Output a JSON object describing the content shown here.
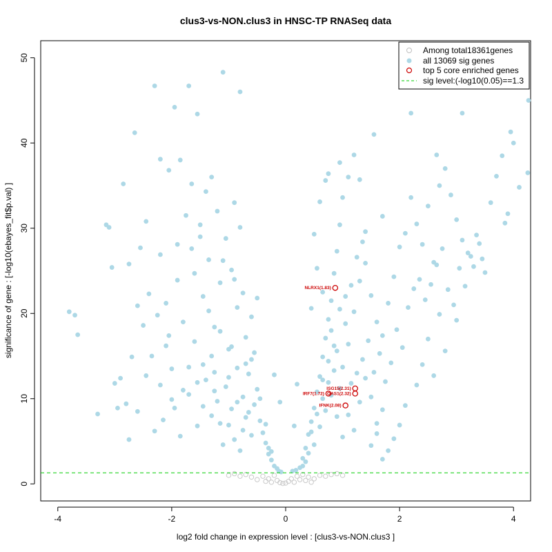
{
  "chart_data": {
    "type": "scatter",
    "title": "clus3-vs-NON.clus3 in HNSC-TP RNASeq data",
    "xlabel": "log2 fold change in expression level : [clus3-vs-NON.clus3 ]",
    "ylabel": "significance of gene : [-log10(ebayes_fit$p.val) ]",
    "xlim": [
      -4.3,
      4.3
    ],
    "ylim": [
      -2,
      52
    ],
    "x_ticks": [
      -4,
      -2,
      0,
      2,
      4
    ],
    "y_ticks": [
      0,
      10,
      20,
      30,
      40,
      50
    ],
    "x_tick_labels": [
      "-4",
      "-2",
      "0",
      "2",
      "4"
    ],
    "y_tick_labels": [
      "0",
      "10",
      "20",
      "30",
      "40",
      "50"
    ],
    "threshold": {
      "y": 1.3,
      "label": "sig level:(-log10(0.05)==1.3",
      "color": "#00cc00"
    },
    "legend_position": "top-right",
    "legend": [
      {
        "label": "Among total18361genes",
        "marker": "open-circle",
        "color": "#bebebe"
      },
      {
        "label": "all 13069 sig genes",
        "marker": "filled-circle",
        "color": "#add8e6"
      },
      {
        "label": "top 5 core enriched genes",
        "marker": "open-circle",
        "color": "#cc0000"
      },
      {
        "label": "sig level:(-log10(0.05)==1.3",
        "marker": "dashed-line",
        "color": "#00cc00"
      }
    ],
    "colors": {
      "sig": "#add8e6",
      "nonsig": "#c8c8c8",
      "top": "#cc0000"
    },
    "highlighted_genes": [
      {
        "label": "NLRX1(1.83)",
        "x": 0.87,
        "y": 23.0
      },
      {
        "label": "ISG15(2.31)",
        "x": 1.22,
        "y": 11.2
      },
      {
        "label": "IRF7(1.72)",
        "x": 0.75,
        "y": 10.6
      },
      {
        "label": "OAS1(2.32)",
        "x": 1.22,
        "y": 10.6
      },
      {
        "label": "IFNK(2.08)",
        "x": 1.05,
        "y": 9.2
      }
    ],
    "series": [
      {
        "name": "all 13069 sig genes",
        "points": [
          [
            -3.8,
            20.2
          ],
          [
            -3.7,
            19.8
          ],
          [
            -3.65,
            17.5
          ],
          [
            -3.1,
            30.1
          ],
          [
            -3.15,
            30.4
          ],
          [
            -3.05,
            25.4
          ],
          [
            -2.95,
            8.9
          ],
          [
            -2.85,
            35.2
          ],
          [
            -2.75,
            25.8
          ],
          [
            -2.65,
            41.2
          ],
          [
            -2.55,
            27.7
          ],
          [
            -2.45,
            30.8
          ],
          [
            -2.3,
            46.7
          ],
          [
            -2.2,
            38.1
          ],
          [
            -2.05,
            36.8
          ],
          [
            -1.95,
            44.2
          ],
          [
            -1.85,
            38.0
          ],
          [
            -1.7,
            46.7
          ],
          [
            -1.65,
            35.2
          ],
          [
            -1.55,
            43.4
          ],
          [
            -1.4,
            34.3
          ],
          [
            -1.3,
            36.0
          ],
          [
            -1.1,
            48.3
          ],
          [
            -0.8,
            46.0
          ],
          [
            -0.9,
            33.0
          ],
          [
            -3.0,
            11.8
          ],
          [
            -2.9,
            12.4
          ],
          [
            -2.8,
            9.4
          ],
          [
            -2.7,
            14.9
          ],
          [
            -2.6,
            8.5
          ],
          [
            -2.5,
            18.6
          ],
          [
            -2.4,
            22.3
          ],
          [
            -2.35,
            15.0
          ],
          [
            -2.2,
            26.9
          ],
          [
            -2.1,
            21.2
          ],
          [
            -2.0,
            13.5
          ],
          [
            -1.9,
            28.1
          ],
          [
            -1.8,
            19.0
          ],
          [
            -1.75,
            31.5
          ],
          [
            -1.6,
            24.7
          ],
          [
            -1.5,
            30.4
          ],
          [
            -1.45,
            22.0
          ],
          [
            -1.35,
            26.3
          ],
          [
            -1.25,
            18.4
          ],
          [
            -1.2,
            32.0
          ],
          [
            -1.15,
            23.6
          ],
          [
            -1.05,
            28.8
          ],
          [
            -1.0,
            15.8
          ],
          [
            -0.95,
            25.1
          ],
          [
            -0.85,
            20.7
          ],
          [
            -0.75,
            22.4
          ],
          [
            -0.7,
            17.2
          ],
          [
            -0.65,
            12.9
          ],
          [
            -0.6,
            14.6
          ],
          [
            -0.55,
            9.3
          ],
          [
            -0.5,
            11.1
          ],
          [
            -0.45,
            7.4
          ],
          [
            -0.4,
            6.0
          ],
          [
            -0.35,
            4.8
          ],
          [
            -0.3,
            3.5
          ],
          [
            -0.25,
            2.8
          ],
          [
            -0.2,
            2.1
          ],
          [
            -0.15,
            1.8
          ],
          [
            -2.3,
            6.2
          ],
          [
            -2.15,
            7.5
          ],
          [
            -1.95,
            8.9
          ],
          [
            -1.85,
            5.6
          ],
          [
            -1.7,
            10.5
          ],
          [
            -1.55,
            6.8
          ],
          [
            -1.4,
            12.2
          ],
          [
            -1.3,
            8.0
          ],
          [
            -1.2,
            9.7
          ],
          [
            -1.1,
            4.6
          ],
          [
            -1.0,
            6.9
          ],
          [
            -0.9,
            5.2
          ],
          [
            -0.8,
            3.9
          ],
          [
            -0.7,
            7.8
          ],
          [
            -1.6,
            16.7
          ],
          [
            -1.45,
            14.0
          ],
          [
            -1.35,
            20.3
          ],
          [
            -1.25,
            13.1
          ],
          [
            -1.15,
            17.9
          ],
          [
            -1.05,
            11.4
          ],
          [
            -0.95,
            16.1
          ],
          [
            -0.85,
            13.6
          ],
          [
            -0.75,
            10.2
          ],
          [
            -0.65,
            8.4
          ],
          [
            -0.6,
            19.6
          ],
          [
            -0.55,
            15.4
          ],
          [
            -0.5,
            21.8
          ],
          [
            -1.9,
            23.9
          ],
          [
            -2.05,
            17.4
          ],
          [
            -2.25,
            19.8
          ],
          [
            -2.45,
            12.7
          ],
          [
            -2.6,
            20.9
          ],
          [
            -1.65,
            27.6
          ],
          [
            -1.5,
            29.0
          ],
          [
            -1.1,
            26.2
          ],
          [
            -0.9,
            24.0
          ],
          [
            -0.8,
            30.1
          ],
          [
            -1.7,
            13.7
          ],
          [
            -1.8,
            11.0
          ],
          [
            -2.0,
            9.9
          ],
          [
            -2.1,
            16.2
          ],
          [
            -2.2,
            11.6
          ],
          [
            -1.3,
            15.0
          ],
          [
            -1.0,
            12.5
          ],
          [
            -0.7,
            14.1
          ],
          [
            -0.6,
            5.7
          ],
          [
            -0.45,
            10.0
          ],
          [
            -0.35,
            7.0
          ],
          [
            -0.3,
            4.2
          ],
          [
            -0.25,
            3.8
          ],
          [
            -1.15,
            7.1
          ],
          [
            -1.25,
            10.9
          ],
          [
            -0.95,
            8.8
          ],
          [
            -0.85,
            9.6
          ],
          [
            -0.75,
            6.3
          ],
          [
            -1.45,
            9.1
          ],
          [
            -1.55,
            11.9
          ],
          [
            0.3,
            3.0
          ],
          [
            0.35,
            4.2
          ],
          [
            0.4,
            5.8
          ],
          [
            0.45,
            7.3
          ],
          [
            0.5,
            8.9
          ],
          [
            0.55,
            10.8
          ],
          [
            0.6,
            12.6
          ],
          [
            0.65,
            14.9
          ],
          [
            0.7,
            17.1
          ],
          [
            0.75,
            19.3
          ],
          [
            0.8,
            21.5
          ],
          [
            0.85,
            24.7
          ],
          [
            0.9,
            27.3
          ],
          [
            0.95,
            30.4
          ],
          [
            1.0,
            33.6
          ],
          [
            1.1,
            36.0
          ],
          [
            1.2,
            38.6
          ],
          [
            1.3,
            35.7
          ],
          [
            1.4,
            29.6
          ],
          [
            1.55,
            41.0
          ],
          [
            1.7,
            31.4
          ],
          [
            0.6,
            33.1
          ],
          [
            0.7,
            35.6
          ],
          [
            0.95,
            37.7
          ],
          [
            0.75,
            36.4
          ],
          [
            0.5,
            29.3
          ],
          [
            0.45,
            20.6
          ],
          [
            0.55,
            25.3
          ],
          [
            0.65,
            22.5
          ],
          [
            0.8,
            18.0
          ],
          [
            0.9,
            15.6
          ],
          [
            1.0,
            13.7
          ],
          [
            1.1,
            16.4
          ],
          [
            1.2,
            20.2
          ],
          [
            1.3,
            23.8
          ],
          [
            1.4,
            25.9
          ],
          [
            1.5,
            22.1
          ],
          [
            1.6,
            19.0
          ],
          [
            1.7,
            17.4
          ],
          [
            1.8,
            21.2
          ],
          [
            1.9,
            24.3
          ],
          [
            2.0,
            27.8
          ],
          [
            2.1,
            29.4
          ],
          [
            2.2,
            33.6
          ],
          [
            2.3,
            30.5
          ],
          [
            2.4,
            28.1
          ],
          [
            2.5,
            32.6
          ],
          [
            2.6,
            26.0
          ],
          [
            2.7,
            35.0
          ],
          [
            2.8,
            37.0
          ],
          [
            2.9,
            33.9
          ],
          [
            3.0,
            31.0
          ],
          [
            3.1,
            28.6
          ],
          [
            3.2,
            27.1
          ],
          [
            3.3,
            25.5
          ],
          [
            3.4,
            28.2
          ],
          [
            3.5,
            24.8
          ],
          [
            3.6,
            33.0
          ],
          [
            3.7,
            36.1
          ],
          [
            3.8,
            38.5
          ],
          [
            3.9,
            31.7
          ],
          [
            4.0,
            40.0
          ],
          [
            4.1,
            34.8
          ],
          [
            4.25,
            36.5
          ],
          [
            4.3,
            45.0
          ],
          [
            3.95,
            41.3
          ],
          [
            3.85,
            30.6
          ],
          [
            2.65,
            38.6
          ],
          [
            2.2,
            43.5
          ],
          [
            3.1,
            43.5
          ],
          [
            2.5,
            17.0
          ],
          [
            2.6,
            12.7
          ],
          [
            2.7,
            19.9
          ],
          [
            2.8,
            15.6
          ],
          [
            3.0,
            19.2
          ],
          [
            2.4,
            14.0
          ],
          [
            2.3,
            11.6
          ],
          [
            2.1,
            9.2
          ],
          [
            2.0,
            6.9
          ],
          [
            1.9,
            5.3
          ],
          [
            1.8,
            3.9
          ],
          [
            1.7,
            8.7
          ],
          [
            1.6,
            7.1
          ],
          [
            1.5,
            10.2
          ],
          [
            1.4,
            12.4
          ],
          [
            1.3,
            9.6
          ],
          [
            1.2,
            6.3
          ],
          [
            1.1,
            8.1
          ],
          [
            1.0,
            5.5
          ],
          [
            0.9,
            7.9
          ],
          [
            0.8,
            10.4
          ],
          [
            0.7,
            8.6
          ],
          [
            0.6,
            6.7
          ],
          [
            0.5,
            4.6
          ],
          [
            0.4,
            3.6
          ],
          [
            0.35,
            2.6
          ],
          [
            0.3,
            2.1
          ],
          [
            0.25,
            1.9
          ],
          [
            1.35,
            14.6
          ],
          [
            1.45,
            16.8
          ],
          [
            1.55,
            13.1
          ],
          [
            1.65,
            15.3
          ],
          [
            1.75,
            12.0
          ],
          [
            1.85,
            14.2
          ],
          [
            1.95,
            18.1
          ],
          [
            2.05,
            16.0
          ],
          [
            2.15,
            20.7
          ],
          [
            2.25,
            22.9
          ],
          [
            2.35,
            24.0
          ],
          [
            2.45,
            21.6
          ],
          [
            2.55,
            23.4
          ],
          [
            2.65,
            25.7
          ],
          [
            2.75,
            27.6
          ],
          [
            2.85,
            22.8
          ],
          [
            2.95,
            21.0
          ],
          [
            3.05,
            25.3
          ],
          [
            3.15,
            23.2
          ],
          [
            3.25,
            26.7
          ],
          [
            3.35,
            29.2
          ],
          [
            3.45,
            26.4
          ],
          [
            1.15,
            11.8
          ],
          [
            1.25,
            13.0
          ],
          [
            0.95,
            11.2
          ],
          [
            0.85,
            13.3
          ],
          [
            0.75,
            11.9
          ],
          [
            0.65,
            10.0
          ],
          [
            0.55,
            8.2
          ],
          [
            0.45,
            6.1
          ],
          [
            1.05,
            18.8
          ],
          [
            0.95,
            20.5
          ],
          [
            1.15,
            23.3
          ],
          [
            1.25,
            26.6
          ],
          [
            1.35,
            28.4
          ],
          [
            1.05,
            22.0
          ],
          [
            0.85,
            16.2
          ],
          [
            0.75,
            14.4
          ],
          [
            0.65,
            12.2
          ],
          [
            1.5,
            4.5
          ],
          [
            1.6,
            5.9
          ],
          [
            1.7,
            2.9
          ],
          [
            -0.12,
            1.5
          ],
          [
            -0.08,
            1.4
          ],
          [
            0.12,
            1.5
          ],
          [
            0.18,
            1.6
          ],
          [
            -3.3,
            8.2
          ],
          [
            -2.75,
            5.2
          ],
          [
            -0.2,
            12.8
          ],
          [
            -0.1,
            9.6
          ],
          [
            0.15,
            6.8
          ],
          [
            0.2,
            11.7
          ]
        ]
      },
      {
        "name": "Among total18361genes",
        "points": [
          [
            -0.6,
            0.8
          ],
          [
            -0.5,
            0.5
          ],
          [
            -0.4,
            0.9
          ],
          [
            -0.35,
            0.3
          ],
          [
            -0.3,
            0.6
          ],
          [
            -0.25,
            0.2
          ],
          [
            -0.2,
            1.0
          ],
          [
            -0.15,
            0.4
          ],
          [
            -0.1,
            0.15
          ],
          [
            -0.05,
            0.05
          ],
          [
            0.0,
            0.1
          ],
          [
            0.05,
            0.3
          ],
          [
            0.1,
            0.6
          ],
          [
            0.15,
            0.2
          ],
          [
            0.2,
            0.9
          ],
          [
            0.25,
            0.5
          ],
          [
            0.3,
            1.1
          ],
          [
            0.35,
            0.4
          ],
          [
            0.4,
            0.8
          ],
          [
            0.5,
            0.6
          ],
          [
            0.6,
            1.0
          ],
          [
            0.7,
            0.9
          ],
          [
            0.8,
            1.1
          ],
          [
            -0.7,
            1.1
          ],
          [
            -0.8,
            0.9
          ],
          [
            -0.9,
            1.2
          ],
          [
            0.9,
            1.2
          ],
          [
            1.0,
            1.0
          ],
          [
            -1.0,
            1.0
          ],
          [
            0.45,
            0.2
          ]
        ]
      }
    ]
  }
}
